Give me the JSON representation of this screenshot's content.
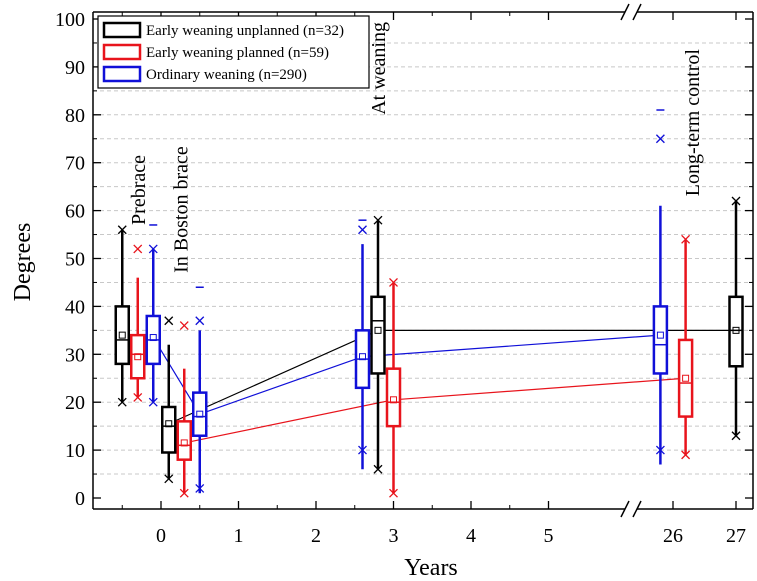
{
  "chart_data": {
    "type": "box",
    "xlabel": "Years",
    "ylabel": "Degrees",
    "ylim": [
      0,
      100
    ],
    "yticks": [
      0,
      10,
      20,
      30,
      40,
      50,
      60,
      70,
      80,
      90,
      100
    ],
    "xticks": [
      "0",
      "1",
      "2",
      "3",
      "4",
      "5",
      "26",
      "27"
    ],
    "x_axis_break": "between 5 and 26",
    "grid": "horizontal dashed",
    "legend_position": "top-left",
    "legend": [
      {
        "name": "Early weaning unplanned (n=32)",
        "color": "#000000"
      },
      {
        "name": "Early weaning planned (n=59)",
        "color": "#e8141c"
      },
      {
        "name": "Ordinary weaning (n=290)",
        "color": "#1010d8"
      }
    ],
    "annotations": [
      {
        "text": "Prebrace",
        "x": -0.3,
        "y": 57
      },
      {
        "text": "In Boston brace",
        "x": 0.25,
        "y": 47
      },
      {
        "text": "At weaning",
        "x": 2.8,
        "y": 80
      },
      {
        "text": "Long-term control",
        "x": 26.3,
        "y": 63
      }
    ],
    "series": [
      {
        "name": "Early weaning unplanned (n=32)",
        "color": "#000000",
        "boxes": [
          {
            "x": -0.5,
            "q1": 28,
            "median": 33,
            "q3": 40,
            "mean": 34,
            "whisker_low": 20,
            "whisker_high": 56,
            "min": 20,
            "max": 56
          },
          {
            "x": 0.1,
            "q1": 9.5,
            "median": 15,
            "q3": 19,
            "mean": 15.5,
            "whisker_low": 4,
            "whisker_high": 32,
            "min": 4,
            "max": 37
          },
          {
            "x": 2.8,
            "q1": 26,
            "median": 37,
            "q3": 42,
            "mean": 35,
            "whisker_low": 6,
            "whisker_high": 58,
            "min": 6,
            "max": 58
          },
          {
            "x": 27,
            "q1": 27.5,
            "median": 35,
            "q3": 42,
            "mean": 35,
            "whisker_low": 13,
            "whisker_high": 62,
            "min": 13,
            "max": 62
          }
        ],
        "mean_line": [
          [
            0.1,
            15.5
          ],
          [
            2.8,
            35
          ],
          [
            27,
            35
          ]
        ]
      },
      {
        "name": "Early weaning planned (n=59)",
        "color": "#e8141c",
        "boxes": [
          {
            "x": -0.3,
            "q1": 25,
            "median": 30,
            "q3": 34,
            "mean": 29.5,
            "whisker_low": 21,
            "whisker_high": 46,
            "min": 21,
            "max": 52
          },
          {
            "x": 0.3,
            "q1": 8,
            "median": 11,
            "q3": 16,
            "mean": 11.5,
            "whisker_low": 1,
            "whisker_high": 27,
            "min": 1,
            "max": 36
          },
          {
            "x": 3.0,
            "q1": 15,
            "median": 20,
            "q3": 27,
            "mean": 20.5,
            "whisker_low": 1,
            "whisker_high": 45,
            "min": 1,
            "max": 45
          },
          {
            "x": 26.2,
            "q1": 17,
            "median": 24,
            "q3": 33,
            "mean": 25,
            "whisker_low": 9,
            "whisker_high": 54,
            "min": 9,
            "max": 54
          }
        ],
        "mean_line": [
          [
            0.3,
            11.5
          ],
          [
            3.0,
            20.5
          ],
          [
            26.2,
            25
          ]
        ]
      },
      {
        "name": "Ordinary weaning (n=290)",
        "color": "#1010d8",
        "boxes": [
          {
            "x": -0.1,
            "q1": 28,
            "median": 33,
            "q3": 38,
            "mean": 33.5,
            "whisker_low": 20,
            "whisker_high": 52,
            "min": 20,
            "max": 52,
            "extreme": 57
          },
          {
            "x": 0.5,
            "q1": 13,
            "median": 17,
            "q3": 22,
            "mean": 17.5,
            "whisker_low": 1,
            "whisker_high": 35,
            "min": 2,
            "max": 37,
            "extreme": 44
          },
          {
            "x": 2.6,
            "q1": 23,
            "median": 29,
            "q3": 35,
            "mean": 29.5,
            "whisker_low": 6,
            "whisker_high": 53,
            "min": 10,
            "max": 56,
            "extreme": 58
          },
          {
            "x": 25.8,
            "q1": 26,
            "median": 32,
            "q3": 40,
            "mean": 34,
            "whisker_low": 7,
            "whisker_high": 61,
            "min": 10,
            "max": 75,
            "extreme": 81
          }
        ],
        "mean_line": [
          [
            -0.1,
            33.5
          ],
          [
            0.5,
            17.5
          ],
          [
            2.6,
            29.5
          ],
          [
            25.8,
            34
          ]
        ]
      }
    ]
  }
}
